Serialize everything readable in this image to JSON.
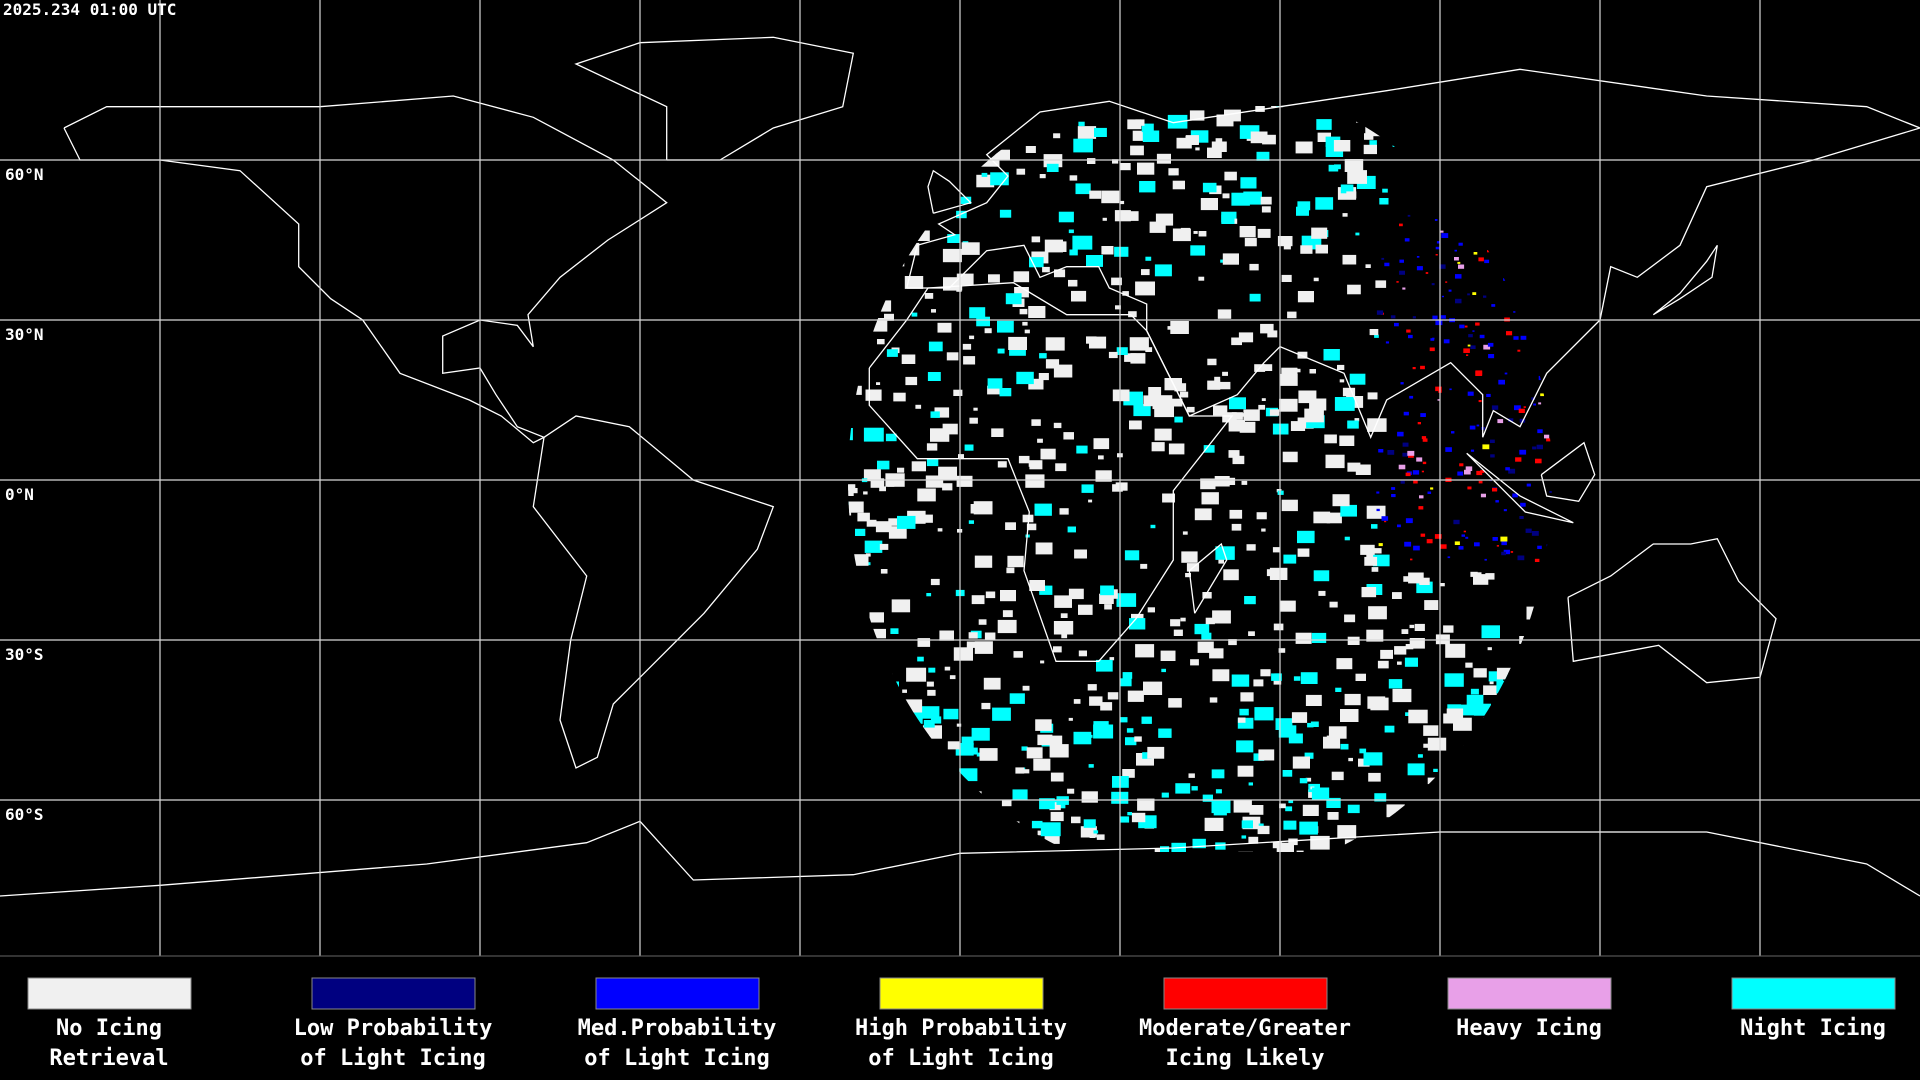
{
  "timestamp": "2025.234 01:00 UTC",
  "latitude_labels": [
    "60°N",
    "30°N",
    "0°N",
    "30°S",
    "60°S"
  ],
  "legend": [
    {
      "lines": [
        "No Icing",
        "Retrieval"
      ],
      "color": "#f0f0f0"
    },
    {
      "lines": [
        "Low Probability",
        "of Light Icing"
      ],
      "color": "#000080"
    },
    {
      "lines": [
        "Med.Probability",
        "of Light Icing"
      ],
      "color": "#0000ff"
    },
    {
      "lines": [
        "High Probability",
        "of Light Icing"
      ],
      "color": "#ffff00"
    },
    {
      "lines": [
        "Moderate/Greater",
        "Icing Likely"
      ],
      "color": "#ff0000"
    },
    {
      "lines": [
        "Heavy Icing"
      ],
      "color": "#e8a0e8"
    },
    {
      "lines": [
        "Night Icing"
      ],
      "color": "#00ffff"
    }
  ]
}
